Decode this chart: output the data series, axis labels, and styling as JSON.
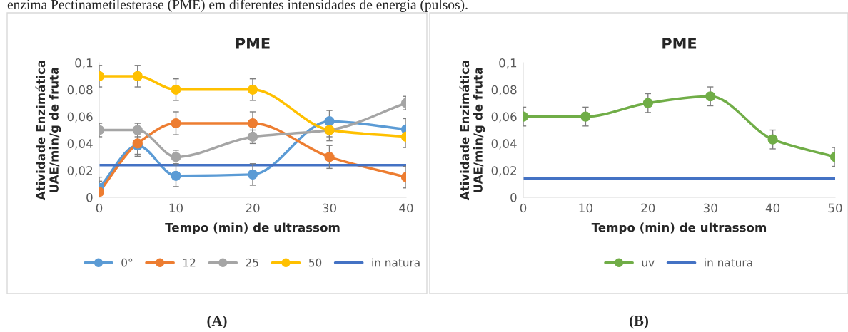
{
  "chart_data": [
    {
      "type": "line",
      "title": "PME",
      "xlabel": "Tempo (min) de ultrassom",
      "ylabel": "Atividade Enzimática\nUAE/min/g de fruta",
      "x": [
        0,
        5,
        10,
        20,
        30,
        40
      ],
      "xlim": [
        0,
        40
      ],
      "xticks": [
        0,
        10,
        20,
        30,
        40
      ],
      "ylim": [
        0,
        0.1
      ],
      "yticks": [
        0,
        {
          "value": 0.02,
          "label": "0,02"
        },
        {
          "value": 0.04,
          "label": "0,04"
        },
        {
          "value": 0.06,
          "label": "0,06"
        },
        {
          "value": 0.08,
          "label": "0,08"
        },
        {
          "value": 0.1,
          "label": "0,1"
        }
      ],
      "marker": "circle",
      "legend": "bottom",
      "grid": false,
      "series": [
        {
          "name": "0°",
          "color": "#5b9bd5",
          "values": [
            0.007,
            0.0385,
            0.016,
            0.017,
            0.0565,
            0.0505
          ],
          "errors": [
            0.008,
            0.008,
            0.008,
            0.008,
            0.008,
            0.008
          ]
        },
        {
          "name": "12",
          "color": "#ed7d31",
          "values": [
            0.004,
            0.04,
            0.055,
            0.055,
            0.03,
            0.015
          ],
          "errors": [
            0.008,
            0.008,
            0.0085,
            0.0085,
            0.0085,
            0.008
          ]
        },
        {
          "name": "25",
          "color": "#a5a5a5",
          "values": [
            0.05,
            0.05,
            0.03,
            0.045,
            0.05,
            0.07
          ],
          "errors": [
            0.005,
            0.005,
            0.005,
            0.005,
            0.005,
            0.005
          ]
        },
        {
          "name": "50",
          "color": "#ffc000",
          "values": [
            0.09,
            0.09,
            0.08,
            0.08,
            0.05,
            0.045
          ],
          "errors": [
            0.008,
            0.008,
            0.008,
            0.008,
            0.008,
            0.008
          ]
        },
        {
          "name": "in natura",
          "color": "#4472c4",
          "marker": "none",
          "x": [
            0,
            40
          ],
          "values": [
            0.024,
            0.024
          ]
        }
      ],
      "annotations": [
        "(A)",
        "enzima Pectinametilesterase (PME) em diferentes intensidades de energia (pulsos)."
      ]
    },
    {
      "type": "line",
      "title": "PME",
      "xlabel": "Tempo (min) de ultrassom",
      "ylabel": "Atividade Enzimática\nUAE/min/g de fruta",
      "x": [
        0,
        10,
        20,
        30,
        40,
        50
      ],
      "xlim": [
        0,
        50
      ],
      "xticks": [
        0,
        10,
        20,
        30,
        40,
        50
      ],
      "ylim": [
        0,
        0.1
      ],
      "yticks": [
        0,
        {
          "value": 0.02,
          "label": "0,02"
        },
        {
          "value": 0.04,
          "label": "0,04"
        },
        {
          "value": 0.06,
          "label": "0,06"
        },
        {
          "value": 0.08,
          "label": "0,08"
        },
        {
          "value": 0.1,
          "label": "0,1"
        }
      ],
      "marker": "circle",
      "legend": "bottom",
      "grid": false,
      "series": [
        {
          "name": "uv",
          "color": "#70ad47",
          "values": [
            0.06,
            0.06,
            0.07,
            0.075,
            0.043,
            0.03
          ],
          "errors": [
            0.007,
            0.007,
            0.007,
            0.007,
            0.007,
            0.007
          ]
        },
        {
          "name": "in natura",
          "color": "#4472c4",
          "marker": "none",
          "x": [
            0,
            50
          ],
          "values": [
            0.014,
            0.014
          ]
        }
      ],
      "annotations": [
        "(B)"
      ]
    }
  ]
}
